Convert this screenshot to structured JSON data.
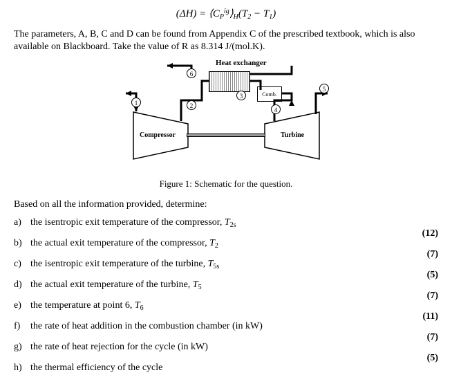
{
  "equation": "(ΔH) = ⟨C_P^ig⟩_H (T₂ − T₁)",
  "paragraph": "The parameters, A, B, C and D can be found from Appendix C of the prescribed textbook, which is also available on Blackboard. Take the value of R as 8.314 J/(mol.K).",
  "figure": {
    "heat_exchanger_label": "Heat exchanger",
    "compressor_label": "Compressor",
    "turbine_label": "Turbine",
    "comb_label": "Comb.",
    "nodes": {
      "n1": "1",
      "n2": "2",
      "n3": "3",
      "n4": "4",
      "n5": "5",
      "n6": "6"
    }
  },
  "caption": "Figure 1: Schematic for the question.",
  "prompt": "Based on all the information provided, determine:",
  "questions": [
    {
      "letter": "a)",
      "text_pre": "the isentropic exit temperature of the compressor, ",
      "var": "T",
      "sub": "2s",
      "marks": "(12)"
    },
    {
      "letter": "b)",
      "text_pre": "the actual exit temperature of the compressor, ",
      "var": "T",
      "sub": "2",
      "marks": "(7)"
    },
    {
      "letter": "c)",
      "text_pre": "the isentropic exit temperature of the turbine, ",
      "var": "T",
      "sub": "5s",
      "marks": "(5)"
    },
    {
      "letter": "d)",
      "text_pre": "the actual exit temperature of the turbine, ",
      "var": "T",
      "sub": "5",
      "marks": "(7)"
    },
    {
      "letter": "e)",
      "text_pre": "the temperature at point 6, ",
      "var": "T",
      "sub": "6",
      "marks": "(11)"
    },
    {
      "letter": "f)",
      "text_pre": "the rate of heat addition in the combustion chamber (in kW)",
      "var": "",
      "sub": "",
      "marks": "(7)"
    },
    {
      "letter": "g)",
      "text_pre": "the rate of heat rejection for the cycle (in kW)",
      "var": "",
      "sub": "",
      "marks": "(5)"
    },
    {
      "letter": "h)",
      "text_pre": "the thermal efficiency of the cycle",
      "var": "",
      "sub": "",
      "marks": ""
    }
  ]
}
